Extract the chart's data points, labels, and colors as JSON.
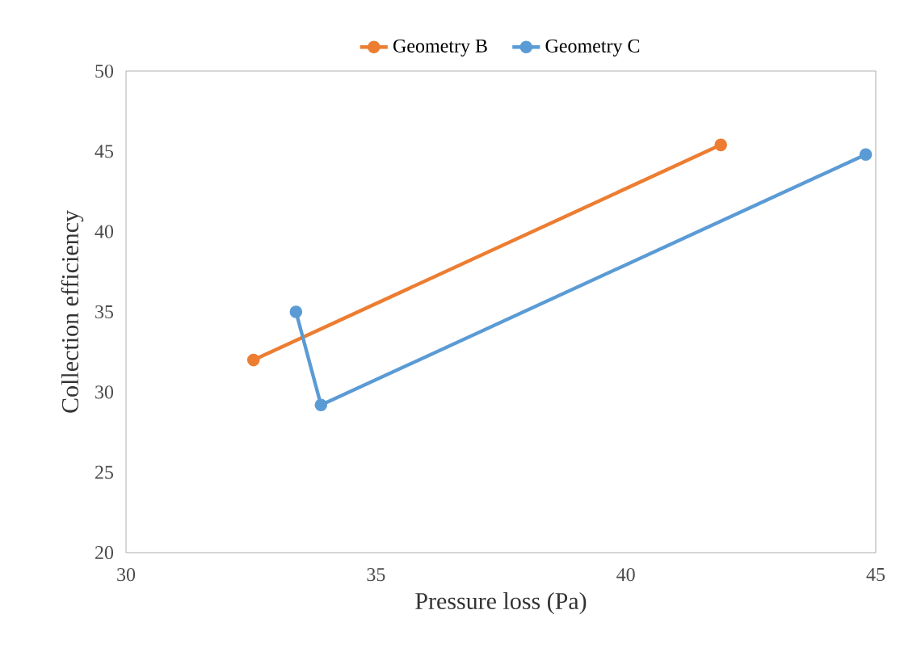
{
  "chart_data": {
    "type": "line",
    "xlabel": "Pressure loss (Pa)",
    "ylabel": "Collection efficiency",
    "xlim": [
      30,
      45
    ],
    "xticks": [
      30,
      35,
      40,
      45
    ],
    "ylim": [
      20,
      50
    ],
    "yticks": [
      20,
      25,
      30,
      35,
      40,
      45,
      50
    ],
    "legend": "top",
    "marker": "circle",
    "line_style": "solid",
    "grid": false,
    "series": [
      {
        "name": "Geometry B",
        "color": "#ed7d31",
        "x": [
          32.55,
          41.9
        ],
        "values": [
          32.0,
          45.4
        ]
      },
      {
        "name": "Geometry C",
        "color": "#5b9bd5",
        "x": [
          33.4,
          33.9,
          44.8
        ],
        "values": [
          35.0,
          29.2,
          44.8
        ]
      }
    ]
  }
}
